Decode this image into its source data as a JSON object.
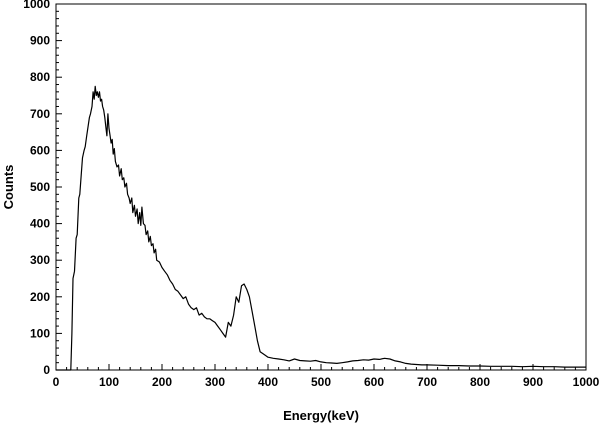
{
  "chart_data": {
    "type": "line",
    "title": "",
    "xlabel": "Energy(keV)",
    "ylabel": "Counts",
    "xlim": [
      0,
      1000
    ],
    "ylim": [
      0,
      1000
    ],
    "x_ticks": [
      0,
      100,
      200,
      300,
      400,
      500,
      600,
      700,
      800,
      900,
      1000
    ],
    "y_ticks": [
      0,
      100,
      200,
      300,
      400,
      500,
      600,
      700,
      800,
      900,
      1000
    ],
    "grid": false,
    "line_color": "#000000",
    "series": [
      {
        "x": [
          0,
          28,
          30,
          32,
          35,
          38,
          40,
          43,
          45,
          48,
          50,
          53,
          55,
          58,
          60,
          63,
          65,
          68,
          70,
          72,
          74,
          76,
          78,
          80,
          82,
          84,
          86,
          88,
          90,
          92,
          94,
          96,
          98,
          100,
          102,
          104,
          106,
          108,
          110,
          112,
          115,
          118,
          120,
          123,
          125,
          128,
          130,
          133,
          135,
          138,
          140,
          143,
          145,
          148,
          150,
          153,
          155,
          158,
          160,
          162,
          165,
          168,
          170,
          173,
          175,
          178,
          180,
          183,
          185,
          188,
          190,
          195,
          200,
          205,
          210,
          215,
          220,
          225,
          230,
          235,
          240,
          245,
          250,
          255,
          260,
          265,
          270,
          275,
          280,
          285,
          290,
          295,
          300,
          305,
          310,
          315,
          320,
          325,
          330,
          335,
          340,
          345,
          350,
          355,
          360,
          365,
          370,
          375,
          380,
          385,
          390,
          395,
          400,
          410,
          420,
          430,
          440,
          450,
          460,
          470,
          480,
          490,
          500,
          510,
          520,
          530,
          540,
          550,
          560,
          570,
          580,
          590,
          600,
          610,
          620,
          630,
          640,
          650,
          660,
          670,
          680,
          690,
          700,
          720,
          740,
          760,
          780,
          800,
          820,
          840,
          860,
          880,
          900,
          920,
          940,
          960,
          980,
          1000
        ],
        "y": [
          0,
          0,
          100,
          250,
          270,
          360,
          370,
          470,
          480,
          540,
          580,
          600,
          610,
          640,
          660,
          690,
          700,
          720,
          760,
          740,
          775,
          750,
          760,
          745,
          760,
          735,
          740,
          720,
          710,
          690,
          665,
          640,
          700,
          660,
          640,
          620,
          630,
          590,
          605,
          570,
          555,
          560,
          530,
          550,
          520,
          525,
          500,
          510,
          480,
          470,
          455,
          470,
          430,
          450,
          420,
          440,
          400,
          430,
          395,
          445,
          400,
          395,
          370,
          380,
          350,
          365,
          340,
          345,
          320,
          330,
          300,
          295,
          280,
          270,
          260,
          245,
          235,
          220,
          215,
          205,
          195,
          200,
          180,
          170,
          165,
          170,
          150,
          155,
          145,
          140,
          140,
          135,
          130,
          120,
          110,
          100,
          90,
          130,
          120,
          150,
          200,
          185,
          230,
          235,
          220,
          200,
          160,
          120,
          80,
          50,
          45,
          40,
          35,
          32,
          30,
          28,
          25,
          30,
          26,
          25,
          24,
          26,
          22,
          20,
          19,
          18,
          20,
          22,
          25,
          26,
          28,
          27,
          30,
          29,
          32,
          30,
          25,
          22,
          18,
          16,
          15,
          14,
          14,
          13,
          12,
          12,
          11,
          11,
          10,
          10,
          10,
          9,
          10,
          9,
          9,
          8,
          8,
          8
        ]
      }
    ]
  }
}
